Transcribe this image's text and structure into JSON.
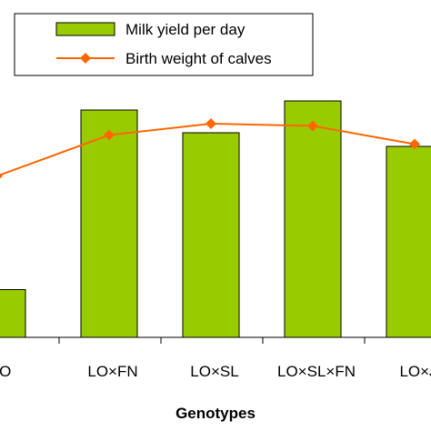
{
  "chart_data": {
    "type": "bar",
    "title": "",
    "xlabel": "Genotypes",
    "categories": [
      "LO",
      "LO×FN",
      "LO×SL",
      "LO×SL×FN",
      "LO×J"
    ],
    "ylim": [
      0,
      100
    ],
    "grid": false,
    "legend_placement": "top",
    "series": [
      {
        "name": "Milk yield per day",
        "kind": "bar",
        "color": "#99cc00",
        "values": [
          21,
          100,
          90,
          104,
          84
        ]
      },
      {
        "name": "Birth weight of calves",
        "kind": "line",
        "color": "#ff6600",
        "values": [
          71,
          89,
          94,
          93,
          85
        ]
      }
    ]
  }
}
